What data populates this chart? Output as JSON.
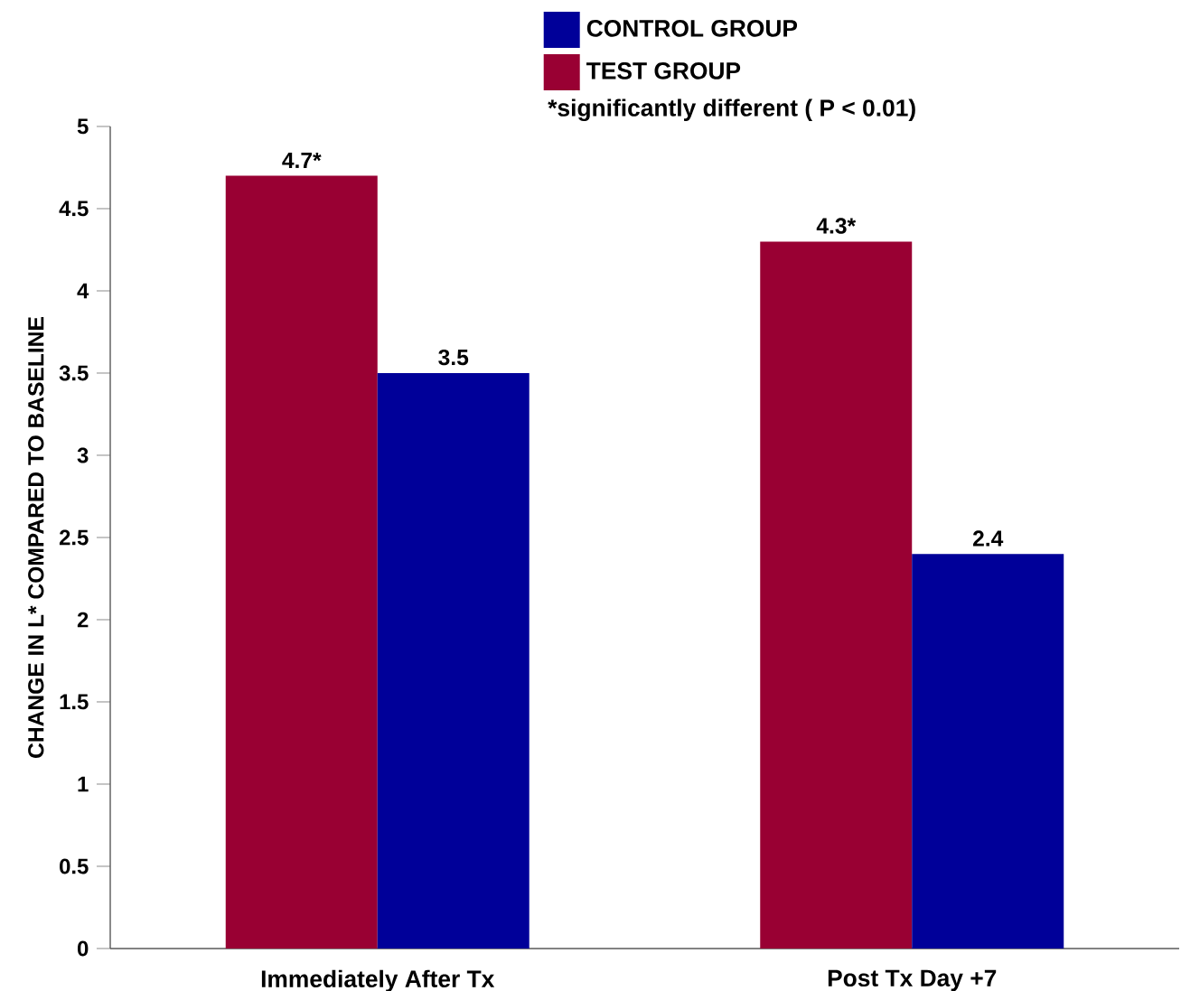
{
  "chart_data": {
    "type": "bar",
    "ylabel": "CHANGE IN L* COMPARED TO BASELINE",
    "categories": [
      "Immediately After Tx",
      "Post Tx Day +7"
    ],
    "series": [
      {
        "name": "TEST GROUP",
        "color": "#990033",
        "values": [
          4.7,
          4.3
        ],
        "value_labels": [
          "4.7*",
          "4.3*"
        ]
      },
      {
        "name": "CONTROL GROUP",
        "color": "#000099",
        "values": [
          3.5,
          2.4
        ],
        "value_labels": [
          "3.5",
          "2.4"
        ]
      }
    ],
    "ylim": [
      0,
      5
    ],
    "yticks": [
      0,
      0.5,
      1,
      1.5,
      2,
      2.5,
      3,
      3.5,
      4,
      4.5,
      5
    ],
    "grid": false,
    "legend": "top",
    "annotations": [
      "*significantly different ( P < 0.01)"
    ]
  }
}
